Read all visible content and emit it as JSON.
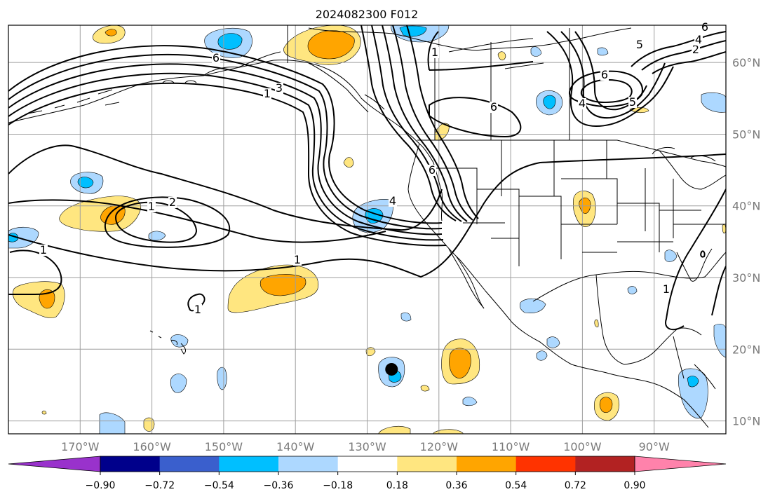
{
  "title": "2024082300 F012",
  "lon_ticks": [
    "170°W",
    "160°W",
    "150°W",
    "140°W",
    "130°W",
    "120°W",
    "110°W",
    "100°W",
    "90°W"
  ],
  "lat_ticks": [
    "60°N",
    "50°N",
    "40°N",
    "30°N",
    "20°N",
    "10°N"
  ],
  "colorbar": {
    "labels": [
      "−0.90",
      "−0.72",
      "−0.54",
      "−0.36",
      "−0.18",
      "0.18",
      "0.36",
      "0.54",
      "0.72",
      "0.90"
    ],
    "colors": [
      "#9932cc",
      "#00008b",
      "#3a5fcd",
      "#00bfff",
      "#add8ff",
      "#ffffff",
      "#ffe680",
      "#ffa500",
      "#ff3300",
      "#b22222",
      "#ff82ab"
    ]
  },
  "contour_labels": [
    "3",
    "1",
    "3",
    "2",
    "1",
    "1",
    "1",
    "6",
    "1",
    "6",
    "4",
    "2",
    "4",
    "6",
    "5",
    "6",
    "5",
    "5",
    "1",
    "1",
    "6",
    "2",
    "1",
    "5",
    "4",
    "6"
  ],
  "marker": {
    "lat": 17.2,
    "lon": -126.6
  }
}
